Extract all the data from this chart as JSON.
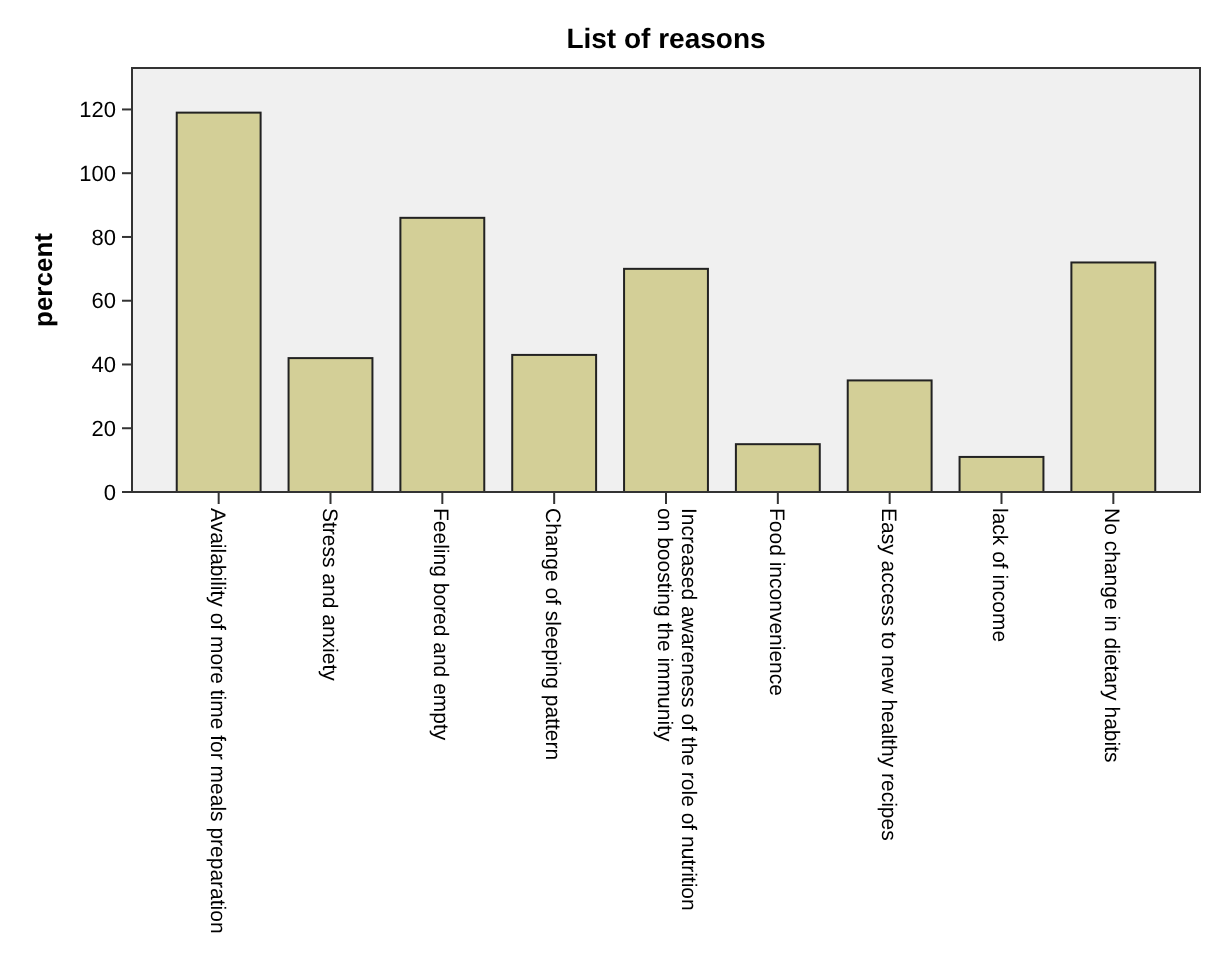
{
  "chart_data": {
    "type": "bar",
    "title": "List of reasons",
    "ylabel": "percent",
    "categories": [
      "Availability of more time for meals preparation",
      "Stress and anxiety",
      "Feeling bored and empty",
      "Change of sleeping pattern",
      "Increased awareness of the role of nutrition\non boosting the immunity",
      "Food inconvenience",
      "Easy access to new healthy recipes",
      "lack of income",
      "No change in dietary habits"
    ],
    "values": [
      119,
      42,
      86,
      43,
      70,
      15,
      35,
      11,
      72
    ],
    "color": "#d3cf97",
    "ylim": [
      0,
      133
    ],
    "yticks": [
      0,
      20,
      40,
      60,
      80,
      100,
      120
    ],
    "grid": false
  }
}
